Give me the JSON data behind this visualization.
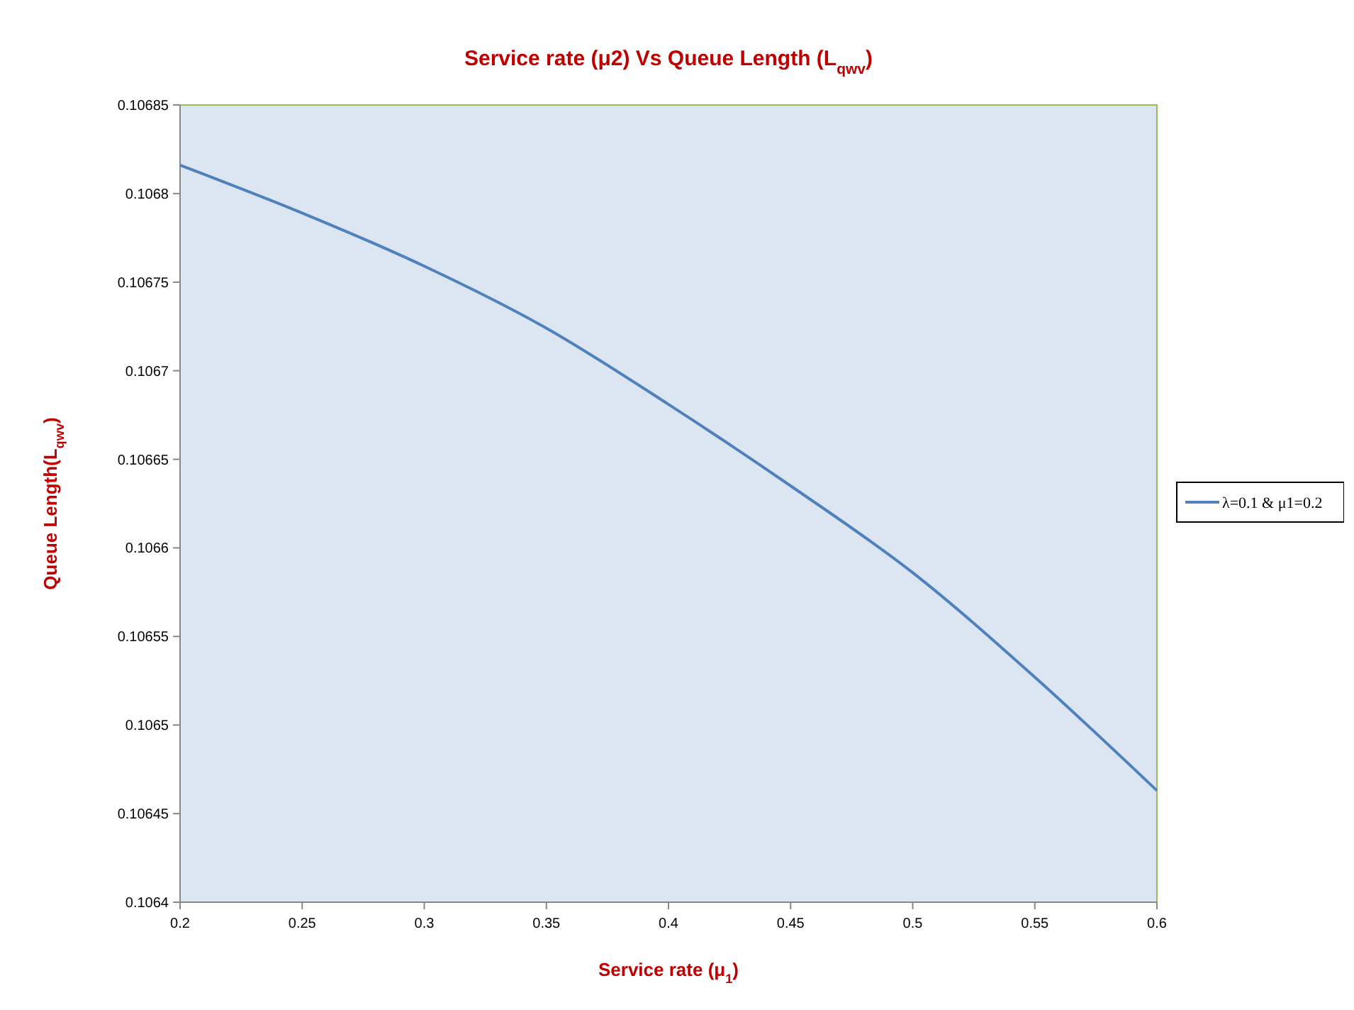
{
  "chart_data": {
    "type": "line",
    "title": "Service rate (μ2) Vs Queue Length (L$_{qwv}$)",
    "xlabel": "Service rate (μ$_{1}$)",
    "ylabel": "Queue Length(L$_{qwv}$)",
    "x": [
      0.2,
      0.25,
      0.3,
      0.35,
      0.4,
      0.45,
      0.5,
      0.55,
      0.6
    ],
    "series": [
      {
        "name": "λ=0.1 & μ1=0.2",
        "color": "#4f81bd",
        "values": [
          0.106816,
          0.106789,
          0.106759,
          0.106724,
          0.106681,
          0.106635,
          0.106586,
          0.106527,
          0.106463
        ]
      }
    ],
    "xlim": [
      0.2,
      0.6
    ],
    "xticks": [
      0.2,
      0.25,
      0.3,
      0.35,
      0.4,
      0.45,
      0.5,
      0.55,
      0.6
    ],
    "ylim": [
      0.1064,
      0.10685
    ],
    "yticks": [
      0.1064,
      0.10645,
      0.1065,
      0.10655,
      0.1066,
      0.10665,
      0.1067,
      0.10675,
      0.1068,
      0.10685
    ],
    "grid": false,
    "legend": "right",
    "marker": "none",
    "line_style": "solid"
  }
}
